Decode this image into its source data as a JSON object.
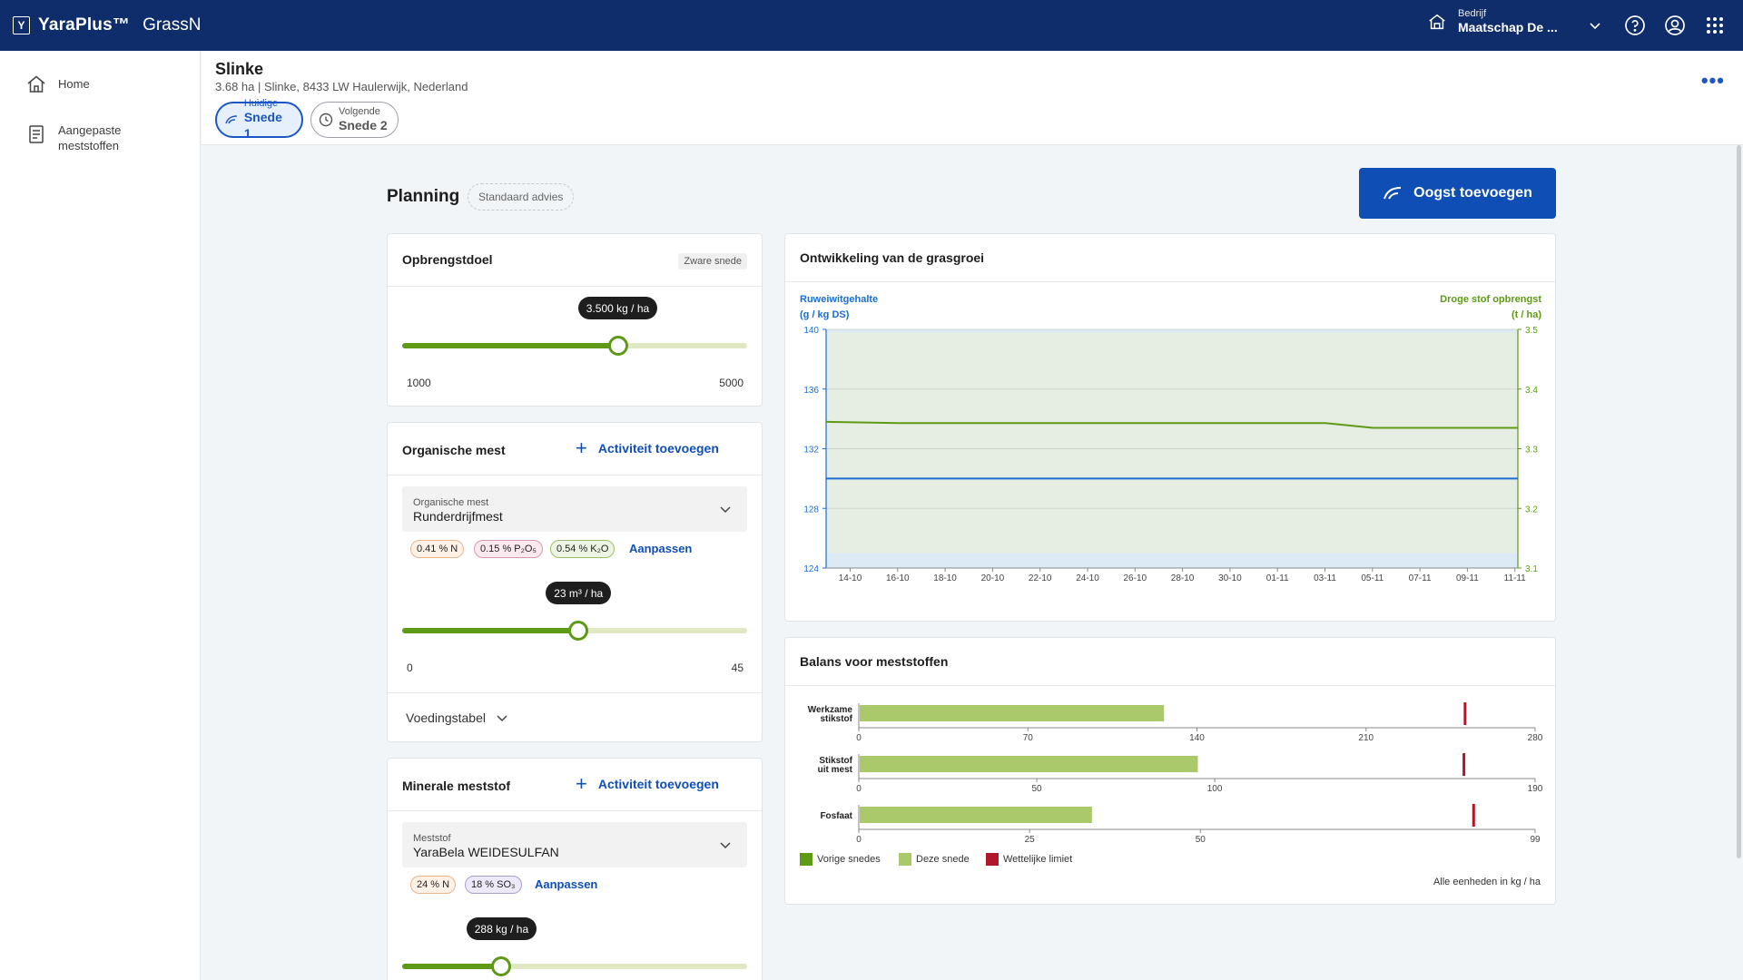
{
  "topbar": {
    "logo_letter": "Y",
    "brand": "YaraPlus™",
    "app": "GrassN",
    "company_label": "Bedrijf",
    "company_name": "Maatschap De ..."
  },
  "sidebar": {
    "items": [
      {
        "label": "Home",
        "icon": "home-icon"
      },
      {
        "label_line1": "Aangepaste",
        "label_line2": "meststoffen",
        "icon": "fertilizer-list-icon"
      }
    ]
  },
  "field": {
    "name": "Slinke",
    "subtitle": "3.68 ha | Slinke, 8433 LW Haulerwijk, Nederland",
    "cuts": [
      {
        "small": "Huidige",
        "big": "Snede 1",
        "active": true
      },
      {
        "small": "Volgende",
        "big": "Snede 2",
        "active": false
      }
    ]
  },
  "planning": {
    "title": "Planning",
    "badge": "Standaard advies",
    "harvest_button": "Oogst toevoegen"
  },
  "yield_goal": {
    "title": "Opbrengstdoel",
    "badge": "Zware snede",
    "tooltip": "3.500 kg / ha",
    "value": 3500,
    "min": 1000,
    "max": 5000,
    "min_label": "1000",
    "max_label": "5000"
  },
  "organic": {
    "title": "Organische mest",
    "add_label": "Activiteit toevoegen",
    "select_label": "Organische mest",
    "select_value": "Runderdrijfmest",
    "chips": [
      "0.41 % N",
      "0.15 % P₂O₅",
      "0.54 % K₂O"
    ],
    "adjust": "Aanpassen",
    "tooltip": "23 m³ / ha",
    "value": 23,
    "min": 0,
    "max": 45,
    "min_label": "0",
    "max_label": "45",
    "nutrition_table": "Voedingstabel"
  },
  "mineral": {
    "title": "Minerale meststof",
    "add_label": "Activiteit toevoegen",
    "select_label": "Meststof",
    "select_value": "YaraBela WEIDESULFAN",
    "chips": [
      "24 % N",
      "18 % SO₃"
    ],
    "adjust": "Aanpassen",
    "tooltip": "288 kg / ha",
    "value": 288,
    "min": 0,
    "max": 1000
  },
  "chart_data": [
    {
      "type": "area",
      "title": "Ontwikkeling van de grasgroei",
      "left_axis_label_1": "Ruweiwitgehalte",
      "left_axis_label_2": "(g / kg DS)",
      "right_axis_label_1": "Droge stof opbrengst",
      "right_axis_label_2": "(t / ha)",
      "left_ylim": [
        124,
        140
      ],
      "right_ylim": [
        3.1,
        3.5
      ],
      "left_ticks": [
        "140",
        "136",
        "132",
        "128",
        "124"
      ],
      "right_ticks": [
        "3.5",
        "3.4",
        "3.3",
        "3.2",
        "3.1"
      ],
      "x_ticks": [
        "14-10",
        "16-10",
        "18-10",
        "20-10",
        "22-10",
        "24-10",
        "26-10",
        "28-10",
        "30-10",
        "01-11",
        "03-11",
        "05-11",
        "07-11",
        "09-11",
        "11-11"
      ],
      "series": [
        {
          "name": "Ruweiwitgehalte",
          "axis": "left",
          "color": "#1a6fd1",
          "values": [
            130.0,
            130.0,
            130.0,
            130.0,
            130.0,
            130.0,
            130.0,
            130.0,
            130.0,
            130.0,
            130.0,
            130.0,
            130.0,
            130.0,
            130.0
          ]
        },
        {
          "name": "Droge stof opbrengst",
          "axis": "right",
          "color": "#5e9a16",
          "values": [
            3.345,
            3.343,
            3.343,
            3.343,
            3.343,
            3.343,
            3.343,
            3.343,
            3.343,
            3.343,
            3.343,
            3.335,
            3.335,
            3.335,
            3.335
          ]
        }
      ],
      "bands": [
        {
          "name": "Ruweiwitgehalte band",
          "color": "#d6e6f4",
          "lower": [
            124,
            124,
            124,
            124,
            124,
            124,
            124,
            124,
            124,
            124,
            124,
            124,
            124,
            124,
            124
          ],
          "upper": [
            140,
            140,
            140,
            140,
            140,
            140,
            140,
            140,
            140,
            140,
            140,
            140,
            140,
            140,
            140
          ]
        },
        {
          "name": "Droge stof band",
          "color": "#e9eedb",
          "lower": [
            3.125,
            3.125,
            3.125,
            3.125,
            3.125,
            3.125,
            3.125,
            3.125,
            3.125,
            3.125,
            3.125,
            3.125,
            3.125,
            3.125,
            3.125
          ],
          "upper": [
            3.495,
            3.495,
            3.495,
            3.495,
            3.495,
            3.495,
            3.495,
            3.495,
            3.495,
            3.495,
            3.495,
            3.495,
            3.495,
            3.495,
            3.495
          ]
        }
      ]
    },
    {
      "type": "bar",
      "title": "Balans voor meststoffen",
      "rows": [
        {
          "label_1": "Werkzame",
          "label_2": "stikstof",
          "value": 126,
          "limit": 251,
          "max": 280,
          "ticks": [
            "0",
            "70",
            "140",
            "210",
            "280"
          ]
        },
        {
          "label_1": "Stikstof",
          "label_2": "uit mest",
          "value": 95,
          "limit": 170,
          "max": 190,
          "ticks": [
            "0",
            "50",
            "100",
            "190"
          ]
        },
        {
          "label_1": "Fosfaat",
          "label_2": "",
          "value": 34,
          "limit": 90,
          "max": 99,
          "ticks": [
            "0",
            "25",
            "50",
            "99"
          ]
        }
      ],
      "legend": [
        {
          "label": "Vorige snedes",
          "color": "#5e9a16"
        },
        {
          "label": "Deze snede",
          "color": "#a9c96a"
        },
        {
          "label": "Wettelijke limiet",
          "color": "#b0172a"
        }
      ],
      "units_note": "Alle eenheden in kg / ha"
    }
  ]
}
